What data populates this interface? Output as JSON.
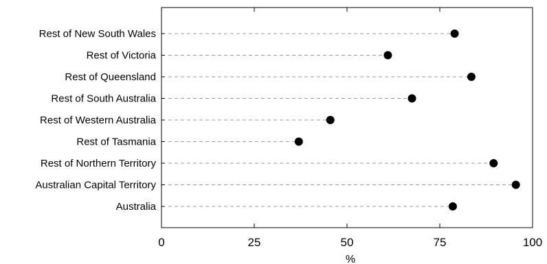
{
  "chart_data": {
    "type": "dot",
    "title": "",
    "xlabel": "%",
    "ylabel": "",
    "categories": [
      "Rest of New South Wales",
      "Rest of Victoria",
      "Rest of Queensland",
      "Rest of South Australia",
      "Rest of Western Australia",
      "Rest of Tasmania",
      "Rest of Northern Territory",
      "Australian Capital Territory",
      "Australia"
    ],
    "values": [
      79,
      61,
      83.5,
      67.5,
      45.5,
      37,
      89.5,
      95.5,
      78.5
    ],
    "xlim": [
      0,
      100
    ],
    "xticks": [
      0,
      25,
      50,
      75,
      100
    ],
    "grid": false,
    "colors": {
      "marker": "#000000",
      "guide": "#9a9a9a",
      "frame": "#000000"
    }
  }
}
